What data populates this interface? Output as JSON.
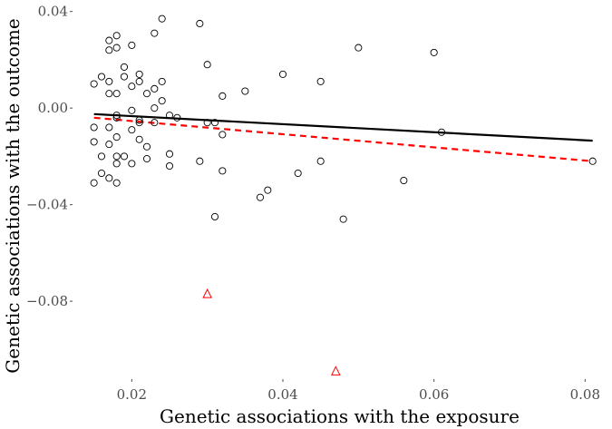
{
  "chart_data": {
    "type": "scatter",
    "title": "",
    "xlabel": "Genetic associations with the exposure",
    "ylabel": "Genetic associations with the outcome",
    "xlim": [
      0.013,
      0.082
    ],
    "ylim": [
      -0.11,
      0.041
    ],
    "x_ticks": [
      0.02,
      0.04,
      0.06,
      0.08
    ],
    "x_tick_labels": [
      "0.02",
      "0.04",
      "0.06",
      "0.08"
    ],
    "y_ticks": [
      0.04,
      0.0,
      -0.04,
      -0.08
    ],
    "y_tick_labels": [
      "0.04",
      "0.00",
      "−0.04",
      "−0.08"
    ],
    "grid": false,
    "series": [
      {
        "marker": "circle",
        "color": "#000000",
        "points": [
          [
            0.024,
            0.037
          ],
          [
            0.029,
            0.035
          ],
          [
            0.023,
            0.031
          ],
          [
            0.018,
            0.03
          ],
          [
            0.017,
            0.028
          ],
          [
            0.018,
            0.025
          ],
          [
            0.02,
            0.026
          ],
          [
            0.017,
            0.024
          ],
          [
            0.05,
            0.025
          ],
          [
            0.06,
            0.023
          ],
          [
            0.03,
            0.018
          ],
          [
            0.019,
            0.017
          ],
          [
            0.021,
            0.014
          ],
          [
            0.016,
            0.013
          ],
          [
            0.019,
            0.013
          ],
          [
            0.04,
            0.014
          ],
          [
            0.017,
            0.011
          ],
          [
            0.024,
            0.011
          ],
          [
            0.045,
            0.011
          ],
          [
            0.015,
            0.01
          ],
          [
            0.021,
            0.011
          ],
          [
            0.02,
            0.009
          ],
          [
            0.023,
            0.008
          ],
          [
            0.035,
            0.007
          ],
          [
            0.017,
            0.006
          ],
          [
            0.018,
            0.006
          ],
          [
            0.022,
            0.006
          ],
          [
            0.032,
            0.005
          ],
          [
            0.024,
            0.003
          ],
          [
            0.023,
            0.0
          ],
          [
            0.02,
            -0.001
          ],
          [
            0.018,
            -0.003
          ],
          [
            0.025,
            -0.003
          ],
          [
            0.018,
            -0.004
          ],
          [
            0.026,
            -0.004
          ],
          [
            0.021,
            -0.005
          ],
          [
            0.021,
            -0.006
          ],
          [
            0.023,
            -0.006
          ],
          [
            0.03,
            -0.006
          ],
          [
            0.031,
            -0.006
          ],
          [
            0.015,
            -0.008
          ],
          [
            0.017,
            -0.008
          ],
          [
            0.02,
            -0.009
          ],
          [
            0.032,
            -0.011
          ],
          [
            0.061,
            -0.01
          ],
          [
            0.018,
            -0.012
          ],
          [
            0.021,
            -0.013
          ],
          [
            0.015,
            -0.014
          ],
          [
            0.017,
            -0.015
          ],
          [
            0.022,
            -0.016
          ],
          [
            0.025,
            -0.019
          ],
          [
            0.016,
            -0.02
          ],
          [
            0.018,
            -0.02
          ],
          [
            0.019,
            -0.02
          ],
          [
            0.022,
            -0.021
          ],
          [
            0.018,
            -0.023
          ],
          [
            0.02,
            -0.023
          ],
          [
            0.029,
            -0.022
          ],
          [
            0.045,
            -0.022
          ],
          [
            0.081,
            -0.022
          ],
          [
            0.025,
            -0.024
          ],
          [
            0.032,
            -0.026
          ],
          [
            0.016,
            -0.027
          ],
          [
            0.042,
            -0.027
          ],
          [
            0.017,
            -0.029
          ],
          [
            0.015,
            -0.031
          ],
          [
            0.018,
            -0.031
          ],
          [
            0.056,
            -0.03
          ],
          [
            0.038,
            -0.034
          ],
          [
            0.037,
            -0.037
          ],
          [
            0.031,
            -0.045
          ],
          [
            0.048,
            -0.046
          ]
        ]
      },
      {
        "marker": "triangle",
        "color": "#ff0000",
        "points": [
          [
            0.03,
            -0.077
          ],
          [
            0.047,
            -0.109
          ]
        ]
      }
    ],
    "lines": [
      {
        "style": "solid",
        "color": "#000000",
        "from": [
          0.015,
          -0.0025
        ],
        "to": [
          0.081,
          -0.0135
        ]
      },
      {
        "style": "dashed",
        "color": "#ff0000",
        "from": [
          0.015,
          -0.004
        ],
        "to": [
          0.081,
          -0.022
        ]
      }
    ]
  }
}
